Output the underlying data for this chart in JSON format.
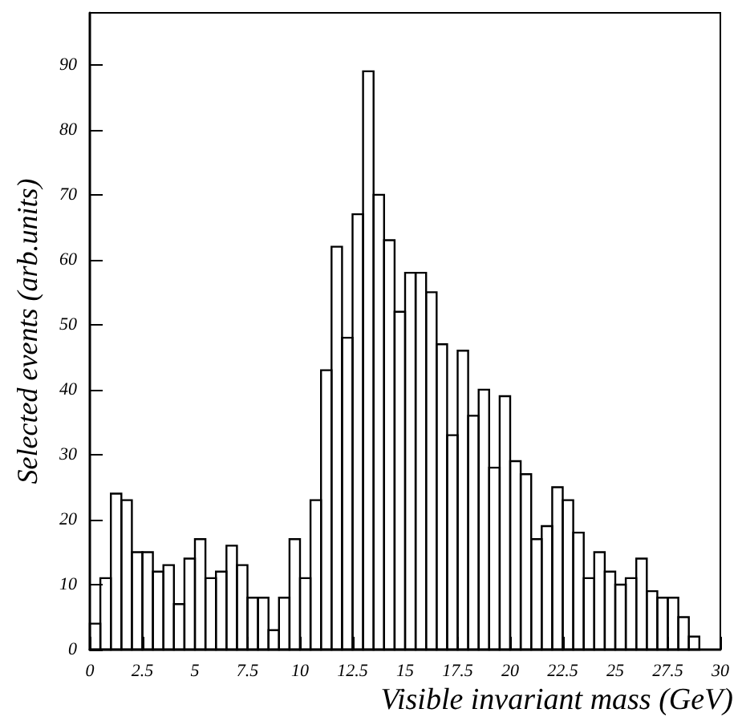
{
  "chart_data": {
    "type": "histogram",
    "xlabel": "Visible invariant mass (GeV)",
    "ylabel": "Selected events (arb.units)",
    "bins": [
      0,
      0.5,
      1,
      1.5,
      2,
      2.5,
      3,
      3.5,
      4,
      4.5,
      5,
      5.5,
      6,
      6.5,
      7,
      7.5,
      8,
      8.5,
      9,
      9.5,
      10,
      10.5,
      11,
      11.5,
      12,
      12.5,
      13,
      13.5,
      14,
      14.5,
      15,
      15.5,
      16,
      16.5,
      17,
      17.5,
      18,
      18.5,
      19,
      19.5,
      20,
      20.5,
      21,
      21.5,
      22,
      22.5,
      23,
      23.5,
      24,
      24.5,
      25,
      25.5,
      26,
      26.5,
      27,
      27.5,
      28,
      28.5,
      29
    ],
    "values": [
      4,
      11,
      24,
      23,
      15,
      15,
      12,
      13,
      7,
      14,
      17,
      11,
      12,
      16,
      13,
      8,
      8,
      3,
      8,
      17,
      11,
      23,
      43,
      62,
      48,
      67,
      89,
      70,
      63,
      52,
      58,
      58,
      55,
      47,
      33,
      46,
      36,
      40,
      28,
      39,
      29,
      27,
      17,
      19,
      25,
      23,
      18,
      11,
      15,
      12,
      10,
      11,
      14,
      9,
      8,
      8,
      5,
      2
    ],
    "color": "#000000",
    "xlim": [
      0,
      30
    ],
    "xticks": [
      0,
      2.5,
      5,
      7.5,
      10,
      12.5,
      15,
      17.5,
      20,
      22.5,
      25,
      27.5,
      30
    ],
    "ylim": [
      0,
      98
    ],
    "yticks": [
      0,
      10,
      20,
      30,
      40,
      50,
      60,
      70,
      80,
      90
    ],
    "grid": false
  }
}
